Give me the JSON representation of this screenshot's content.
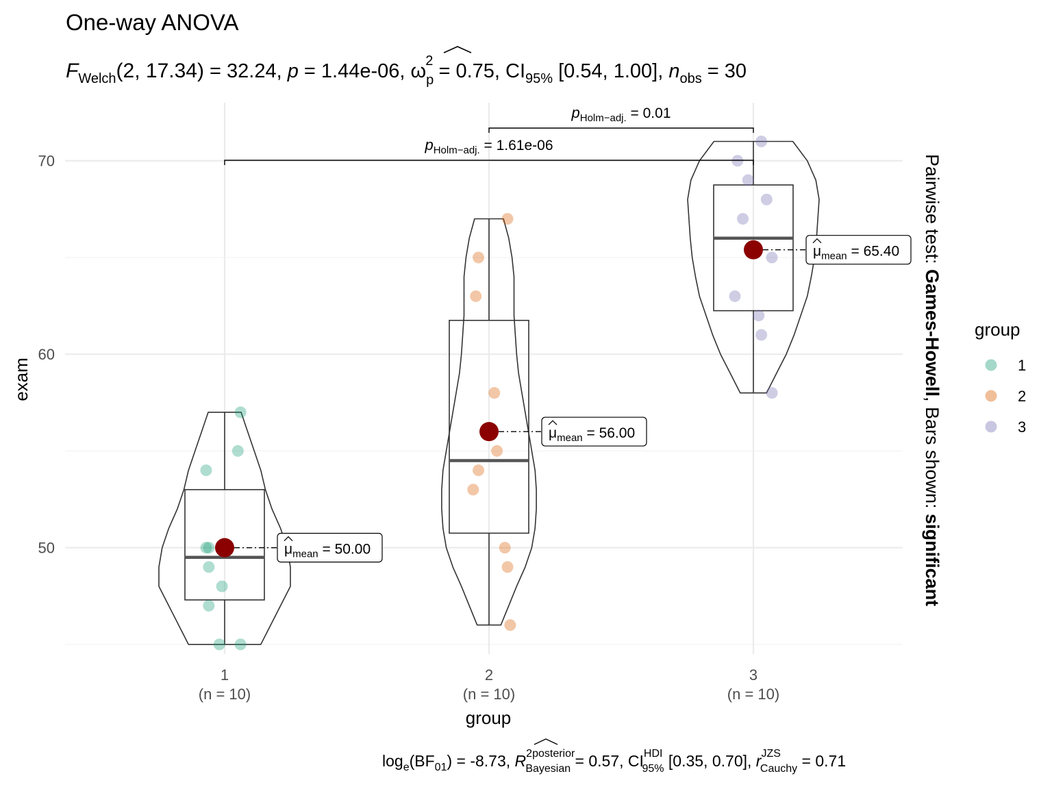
{
  "chart_data": {
    "type": "violin-box-scatter",
    "title": "One-way ANOVA",
    "subtitle": {
      "f_label": "F",
      "f_sub": "Welch",
      "df_text": "(2, 17.34)",
      "f_value": "= 32.24,",
      "p_label": "p",
      "p_value": "= 1.44e-06,",
      "omega_symbol": "ω",
      "omega_sup": "2",
      "omega_sub": "p",
      "omega_value": "= 0.75, CI",
      "ci_sub": "95%",
      "ci_value": "[0.54, 1.00],",
      "n_label": "n",
      "n_sub": "obs",
      "n_value": "= 30"
    },
    "caption": {
      "loge": "log",
      "loge_sub": "e",
      "bf_open": "(BF",
      "bf_sub": "01",
      "bf_value": ") = -8.73,",
      "r_label": "R",
      "r_sup": "2",
      "r_sup2": "posterior",
      "r_sub": "Bayesian",
      "r_value": "= 0.57, CI",
      "ci_sup": "HDI",
      "ci_sub": "95%",
      "ci_value": "[0.35, 0.70],",
      "rc_label": "r",
      "rc_sup": "JZS",
      "rc_sub": "Cauchy",
      "rc_value": "= 0.71"
    },
    "xlabel": "group",
    "ylabel": "exam",
    "ylim": [
      44.5,
      73
    ],
    "y_ticks": [
      50,
      60,
      70
    ],
    "grid": true,
    "categories": [
      {
        "label": "1",
        "n_label": "(n = 10)"
      },
      {
        "label": "2",
        "n_label": "(n = 10)"
      },
      {
        "label": "3",
        "n_label": "(n = 10)"
      }
    ],
    "colors": {
      "group_1": "#1B9E77",
      "group_2": "#D95F02",
      "group_3": "#7570B3",
      "mean_point": "#8B0000",
      "grid": "#EBEBEB",
      "outline": "#333333"
    },
    "groups": [
      {
        "name": "1",
        "points": [
          57,
          55,
          54,
          50,
          49,
          48,
          47,
          45,
          45,
          50
        ],
        "box": {
          "q1": 47.3,
          "median": 49.5,
          "q3": 53,
          "min": 45,
          "max": 57
        },
        "violin": [
          [
            45,
            0.55
          ],
          [
            46,
            0.7
          ],
          [
            47,
            0.85
          ],
          [
            48,
            1.0
          ],
          [
            49,
            1.0
          ],
          [
            50,
            0.95
          ],
          [
            51,
            0.85
          ],
          [
            52,
            0.72
          ],
          [
            53,
            0.62
          ],
          [
            54,
            0.55
          ],
          [
            55,
            0.45
          ],
          [
            56,
            0.35
          ],
          [
            57,
            0.25
          ]
        ],
        "mean": 50.0,
        "mean_label_mu": "μ",
        "mean_label_sub": "mean",
        "mean_label_value": "= 50.00"
      },
      {
        "name": "2",
        "points": [
          67,
          65,
          63,
          58,
          55,
          54,
          53,
          50,
          49,
          46
        ],
        "box": {
          "q1": 50.75,
          "median": 54.5,
          "q3": 61.75,
          "min": 46,
          "max": 67
        },
        "violin": [
          [
            46,
            0.18
          ],
          [
            47,
            0.3
          ],
          [
            48,
            0.42
          ],
          [
            49,
            0.55
          ],
          [
            50,
            0.65
          ],
          [
            51,
            0.7
          ],
          [
            52,
            0.72
          ],
          [
            53,
            0.72
          ],
          [
            54,
            0.7
          ],
          [
            55,
            0.65
          ],
          [
            56,
            0.6
          ],
          [
            57,
            0.55
          ],
          [
            58,
            0.5
          ],
          [
            59,
            0.45
          ],
          [
            60,
            0.42
          ],
          [
            61,
            0.4
          ],
          [
            62,
            0.38
          ],
          [
            63,
            0.38
          ],
          [
            64,
            0.38
          ],
          [
            65,
            0.35
          ],
          [
            66,
            0.3
          ],
          [
            67,
            0.22
          ]
        ],
        "mean": 56.0,
        "mean_label_mu": "μ",
        "mean_label_sub": "mean",
        "mean_label_value": "= 56.00"
      },
      {
        "name": "3",
        "points": [
          71,
          70,
          69,
          68,
          67,
          65,
          63,
          62,
          61,
          58
        ],
        "box": {
          "q1": 62.25,
          "median": 66,
          "q3": 68.75,
          "min": 58,
          "max": 71
        },
        "violin": [
          [
            58,
            0.2
          ],
          [
            59,
            0.35
          ],
          [
            60,
            0.5
          ],
          [
            61,
            0.62
          ],
          [
            62,
            0.72
          ],
          [
            63,
            0.82
          ],
          [
            64,
            0.88
          ],
          [
            65,
            0.93
          ],
          [
            66,
            0.96
          ],
          [
            67,
            0.98
          ],
          [
            68,
            1.0
          ],
          [
            69,
            0.95
          ],
          [
            70,
            0.82
          ],
          [
            71,
            0.6
          ]
        ],
        "mean": 65.4,
        "mean_label_mu": "μ",
        "mean_label_sub": "mean",
        "mean_label_value": "= 65.40"
      }
    ],
    "pairwise": [
      {
        "from": 2,
        "to": 3,
        "p_label": "p",
        "p_sub": "Holm−adj.",
        "p_value": "= 0.01"
      },
      {
        "from": 1,
        "to": 3,
        "p_label": "p",
        "p_sub": "Holm−adj.",
        "p_value": "= 1.61e-06"
      }
    ],
    "right_label": {
      "part1": "Pairwise test: ",
      "part2": "Games-Howell",
      "part3": ", Bars shown: ",
      "part4": "significant"
    },
    "legend": {
      "title": "group",
      "position": "right",
      "items": [
        "1",
        "2",
        "3"
      ]
    }
  }
}
